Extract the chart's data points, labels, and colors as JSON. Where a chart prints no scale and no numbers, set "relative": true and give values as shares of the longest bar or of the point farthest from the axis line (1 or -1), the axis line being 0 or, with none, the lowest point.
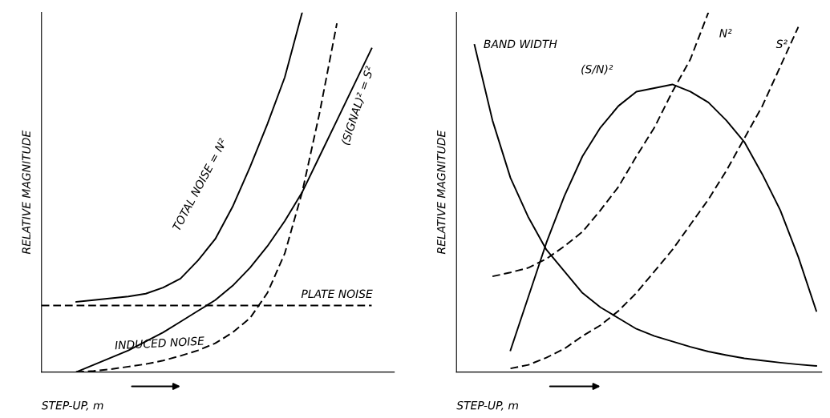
{
  "chart_data": [
    {
      "type": "line",
      "relative": true,
      "xlabel": "STEP-UP, m",
      "ylabel": "RELATIVE MAGNITUDE",
      "tick_labels": false,
      "legend": false,
      "marker": "none",
      "categories": [
        null,
        null,
        null,
        null,
        null,
        null,
        null,
        null,
        null,
        null,
        null,
        null,
        null,
        null,
        null,
        null,
        null,
        null,
        null,
        null,
        null
      ],
      "series": [
        {
          "name": "TOTAL NOISE = N²",
          "color": "#000000",
          "line_style": "solid",
          "values": [
            null,
            null,
            0.195,
            0.2,
            0.205,
            0.21,
            0.218,
            0.235,
            0.26,
            0.31,
            0.37,
            0.46,
            0.57,
            0.69,
            0.82,
            1.0,
            null,
            null,
            null,
            null,
            null
          ]
        },
        {
          "name": "INDUCED NOISE",
          "color": "#000000",
          "line_style": "dashed",
          "values": [
            null,
            null,
            0.0,
            0.003,
            0.008,
            0.015,
            0.022,
            0.032,
            0.045,
            0.06,
            0.08,
            0.11,
            0.15,
            0.22,
            0.33,
            0.5,
            0.72,
            0.97,
            null,
            null,
            null
          ]
        },
        {
          "name": "(SIGNAL)² = S²",
          "color": "#000000",
          "line_style": "solid",
          "values": [
            null,
            null,
            0.0,
            0.02,
            0.04,
            0.06,
            0.085,
            0.11,
            0.14,
            0.17,
            0.2,
            0.24,
            0.29,
            0.35,
            0.42,
            0.5,
            0.6,
            0.7,
            0.8,
            0.9,
            null
          ]
        },
        {
          "name": "PLATE NOISE",
          "color": "#000000",
          "line_style": "dashed",
          "values": [
            0.185,
            0.185,
            0.185,
            0.185,
            0.185,
            0.185,
            0.185,
            0.185,
            0.185,
            0.185,
            0.185,
            0.185,
            0.185,
            0.185,
            0.185,
            0.185,
            0.185,
            0.185,
            0.185,
            0.185,
            null
          ]
        }
      ]
    },
    {
      "type": "line",
      "relative": true,
      "xlabel": "STEP-UP, m",
      "ylabel": "RELATIVE MAGNITUDE",
      "tick_labels": false,
      "legend": false,
      "marker": "none",
      "categories": [
        null,
        null,
        null,
        null,
        null,
        null,
        null,
        null,
        null,
        null,
        null,
        null,
        null,
        null,
        null,
        null,
        null,
        null,
        null,
        null,
        null
      ],
      "series": [
        {
          "name": "N²",
          "color": "#000000",
          "line_style": "dashed",
          "values": [
            null,
            null,
            0.266,
            0.277,
            0.29,
            0.315,
            0.35,
            0.39,
            0.45,
            0.515,
            0.6,
            0.68,
            0.78,
            0.87,
            1.0,
            null,
            null,
            null,
            null,
            null,
            null
          ]
        },
        {
          "name": "S²",
          "color": "#000000",
          "line_style": "dashed",
          "values": [
            null,
            null,
            null,
            0.01,
            0.02,
            0.04,
            0.065,
            0.1,
            0.13,
            0.17,
            0.22,
            0.28,
            0.34,
            0.41,
            0.48,
            0.56,
            0.65,
            0.74,
            0.85,
            0.96,
            null
          ]
        },
        {
          "name": "(S/N)²",
          "color": "#000000",
          "line_style": "solid",
          "values": [
            null,
            null,
            null,
            0.06,
            0.21,
            0.36,
            0.49,
            0.6,
            0.68,
            0.74,
            0.78,
            0.79,
            0.8,
            0.78,
            0.75,
            0.7,
            0.64,
            0.55,
            0.45,
            0.32,
            0.17
          ]
        },
        {
          "name": "BAND WIDTH",
          "color": "#000000",
          "line_style": "solid",
          "values": [
            null,
            0.91,
            0.7,
            0.54,
            0.43,
            0.34,
            0.28,
            0.22,
            0.18,
            0.15,
            0.12,
            0.1,
            0.085,
            0.07,
            0.057,
            0.047,
            0.038,
            0.032,
            0.026,
            0.021,
            0.017
          ]
        }
      ]
    }
  ]
}
